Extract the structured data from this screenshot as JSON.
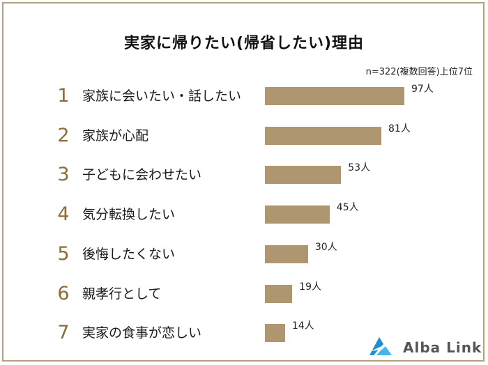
{
  "chart_data": {
    "type": "bar",
    "orientation": "horizontal",
    "title": "実家に帰りたい(帰省したい)理由",
    "subtitle": "n=322(複数回答)上位7位",
    "ranks": [
      "1",
      "2",
      "3",
      "4",
      "5",
      "6",
      "7"
    ],
    "categories": [
      "家族に会いたい・話したい",
      "家族が心配",
      "子どもに会わせたい",
      "気分転換したい",
      "後悔したくない",
      "親孝行として",
      "実家の食事が恋しい"
    ],
    "values": [
      97,
      81,
      53,
      45,
      30,
      19,
      14
    ],
    "value_labels": [
      "97人",
      "81人",
      "53人",
      "45人",
      "30人",
      "19人",
      "14人"
    ],
    "bar_color": "#ae9670",
    "rank_color": "#8a6d3b"
  },
  "brand": {
    "name": "Alba Link",
    "icon": "alba-link-logo-icon"
  },
  "colors": {
    "frame": "#b3a07c",
    "bar": "#ae9670",
    "rank": "#8a6d3b"
  }
}
